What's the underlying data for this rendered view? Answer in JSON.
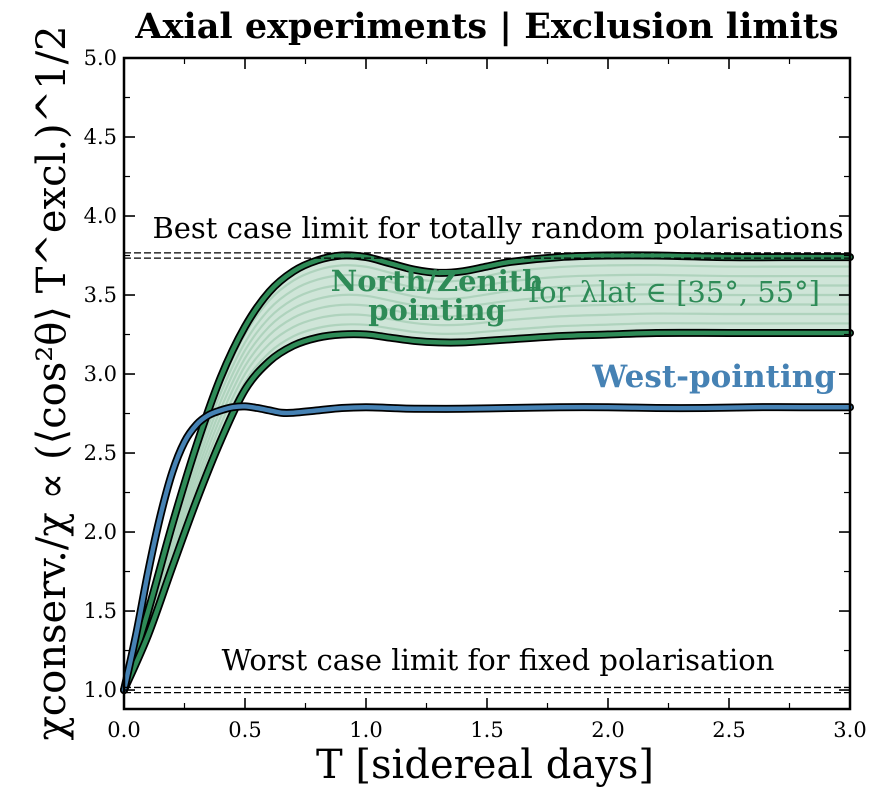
{
  "chart_data": {
    "type": "line",
    "title": "Axial experiments | Exclusion limits",
    "xlabel": "T [sidereal days]",
    "ylabel": "χconserv./χ ∝ (⟨cos²θ⟩ T^excl.)^1/2",
    "xlim": [
      0.0,
      3.0
    ],
    "ylim": [
      0.88,
      5.0
    ],
    "xticks": [
      "0.0",
      "0.5",
      "1.0",
      "1.5",
      "2.0",
      "2.5",
      "3.0"
    ],
    "yticks": [
      "1.0",
      "1.5",
      "2.0",
      "2.5",
      "3.0",
      "3.5",
      "4.0",
      "4.5",
      "5.0"
    ],
    "reference_lines": [
      {
        "name": "best-case",
        "y": 3.75,
        "label": "Best case limit for totally random polarisations"
      },
      {
        "name": "worst-case",
        "y": 1.0,
        "label": "Worst case limit for fixed polarisation"
      }
    ],
    "band": {
      "label_line1": "North/Zenith",
      "label_line2": "pointing",
      "range_label": "for λlat ∈ [35°, 55°]",
      "upper": {
        "x": [
          0.0,
          0.1,
          0.2,
          0.3,
          0.4,
          0.5,
          0.6,
          0.7,
          0.8,
          0.9,
          1.0,
          1.1,
          1.2,
          1.3,
          1.4,
          1.5,
          1.6,
          1.8,
          2.0,
          2.2,
          2.5,
          2.8,
          3.0
        ],
        "y": [
          1.0,
          1.5,
          2.05,
          2.55,
          2.98,
          3.3,
          3.52,
          3.65,
          3.72,
          3.75,
          3.74,
          3.7,
          3.66,
          3.64,
          3.65,
          3.68,
          3.71,
          3.74,
          3.75,
          3.75,
          3.74,
          3.74,
          3.74
        ]
      },
      "lower": {
        "x": [
          0.0,
          0.1,
          0.2,
          0.3,
          0.4,
          0.5,
          0.6,
          0.7,
          0.8,
          0.9,
          1.0,
          1.1,
          1.2,
          1.3,
          1.4,
          1.5,
          1.6,
          1.8,
          2.0,
          2.2,
          2.5,
          2.8,
          3.0
        ],
        "y": [
          1.0,
          1.35,
          1.78,
          2.2,
          2.58,
          2.9,
          3.08,
          3.18,
          3.23,
          3.25,
          3.25,
          3.23,
          3.21,
          3.2,
          3.2,
          3.21,
          3.22,
          3.24,
          3.25,
          3.26,
          3.26,
          3.26,
          3.26
        ]
      }
    },
    "series": [
      {
        "name": "West-pointing",
        "label": "West-pointing",
        "x": [
          0.0,
          0.05,
          0.1,
          0.15,
          0.2,
          0.25,
          0.3,
          0.35,
          0.4,
          0.45,
          0.5,
          0.55,
          0.6,
          0.65,
          0.7,
          0.8,
          0.9,
          1.0,
          1.1,
          1.2,
          1.4,
          1.6,
          1.8,
          2.0,
          2.2,
          2.4,
          2.6,
          2.8,
          3.0
        ],
        "y": [
          1.0,
          1.35,
          1.75,
          2.1,
          2.38,
          2.57,
          2.68,
          2.74,
          2.77,
          2.79,
          2.795,
          2.785,
          2.77,
          2.755,
          2.755,
          2.77,
          2.785,
          2.79,
          2.785,
          2.78,
          2.78,
          2.785,
          2.79,
          2.79,
          2.785,
          2.785,
          2.79,
          2.79,
          2.79
        ]
      }
    ],
    "colors": {
      "band_fill": "#cfe5d8",
      "band_inner": "#a9d0b9",
      "band_edge": "#2e8b57",
      "west": "#4682b4"
    }
  }
}
